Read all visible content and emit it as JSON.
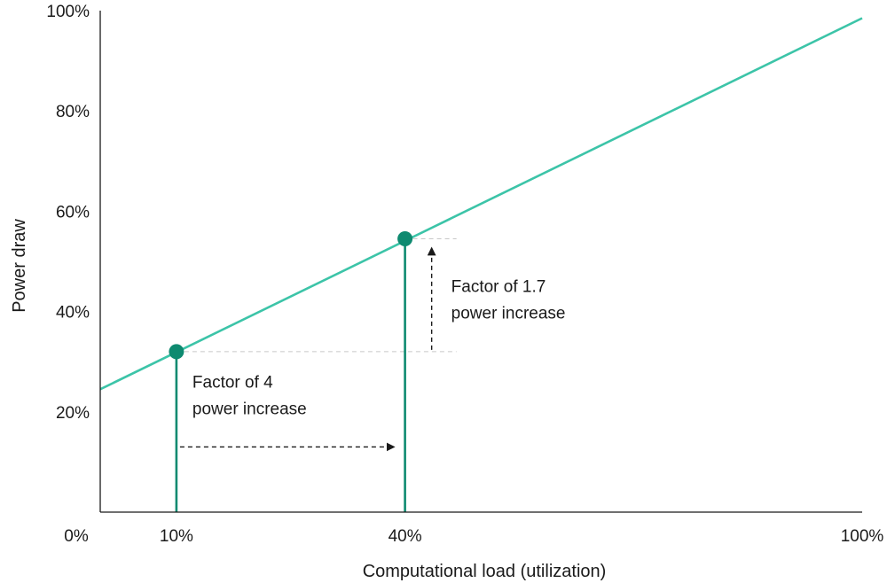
{
  "colors": {
    "line": "#3cc4a8",
    "marker": "#0e8a70",
    "axis": "#1a1a1a",
    "guide": "#c8c8c8",
    "arrow": "#1a1a1a"
  },
  "chart_data": {
    "type": "line",
    "title": "",
    "xlabel": "Computational load (utilization)",
    "ylabel": "Power draw",
    "xlim": [
      0,
      100
    ],
    "ylim": [
      0,
      100
    ],
    "grid": false,
    "x_ticks": [
      {
        "value": 0,
        "label": "0%"
      },
      {
        "value": 10,
        "label": "10%"
      },
      {
        "value": 40,
        "label": "40%"
      },
      {
        "value": 100,
        "label": "100%"
      }
    ],
    "y_ticks": [
      {
        "value": 20,
        "label": "20%"
      },
      {
        "value": 40,
        "label": "40%"
      },
      {
        "value": 60,
        "label": "60%"
      },
      {
        "value": 80,
        "label": "80%"
      },
      {
        "value": 100,
        "label": "100%"
      }
    ],
    "series": [
      {
        "x": [
          0,
          100
        ],
        "y": [
          24.5,
          98.5
        ]
      }
    ],
    "highlighted_points": [
      {
        "x": 10,
        "y": 32
      },
      {
        "x": 40,
        "y": 54.5
      }
    ],
    "annotations": [
      {
        "lines": [
          "Factor of 4",
          "power increase"
        ],
        "direction": "horizontal",
        "from": 10,
        "to": 40,
        "at": 13
      },
      {
        "lines": [
          "Factor of 1.7",
          "power increase"
        ],
        "direction": "vertical",
        "from": 32,
        "to": 54.5,
        "at": 43.5
      }
    ]
  }
}
